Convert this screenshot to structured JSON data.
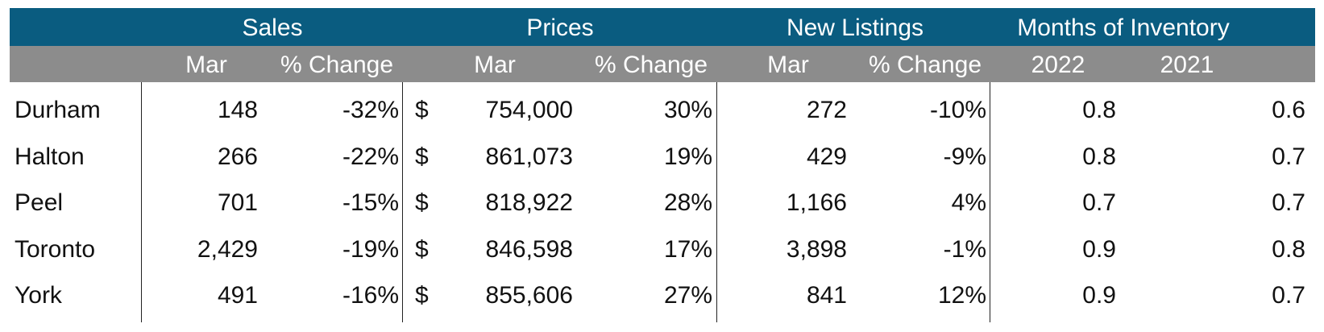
{
  "headers": {
    "groups": [
      "Sales",
      "Prices",
      "New Listings",
      "Months of Inventory"
    ],
    "sub": [
      "Mar",
      "% Change",
      "Mar",
      "% Change",
      "Mar",
      "% Change",
      "2022",
      "2021"
    ]
  },
  "rows": [
    {
      "region": "Durham",
      "sales": "148",
      "sales_change": "-32%",
      "currency": "$",
      "price": "754,000",
      "price_change": "30%",
      "listings": "272",
      "listings_change": "-10%",
      "inv_2022": "0.8",
      "inv_2021": "0.6"
    },
    {
      "region": "Halton",
      "sales": "266",
      "sales_change": "-22%",
      "currency": "$",
      "price": "861,073",
      "price_change": "19%",
      "listings": "429",
      "listings_change": "-9%",
      "inv_2022": "0.8",
      "inv_2021": "0.7"
    },
    {
      "region": "Peel",
      "sales": "701",
      "sales_change": "-15%",
      "currency": "$",
      "price": "818,922",
      "price_change": "28%",
      "listings": "1,166",
      "listings_change": "4%",
      "inv_2022": "0.7",
      "inv_2021": "0.7"
    },
    {
      "region": "Toronto",
      "sales": "2,429",
      "sales_change": "-19%",
      "currency": "$",
      "price": "846,598",
      "price_change": "17%",
      "listings": "3,898",
      "listings_change": "-1%",
      "inv_2022": "0.9",
      "inv_2021": "0.8"
    },
    {
      "region": "York",
      "sales": "491",
      "sales_change": "-16%",
      "currency": "$",
      "price": "855,606",
      "price_change": "27%",
      "listings": "841",
      "listings_change": "12%",
      "inv_2022": "0.9",
      "inv_2021": "0.7"
    }
  ],
  "colors": {
    "header_top": "#0a5c80",
    "header_sub": "#8c8c8c",
    "header_text": "#ffffff"
  }
}
